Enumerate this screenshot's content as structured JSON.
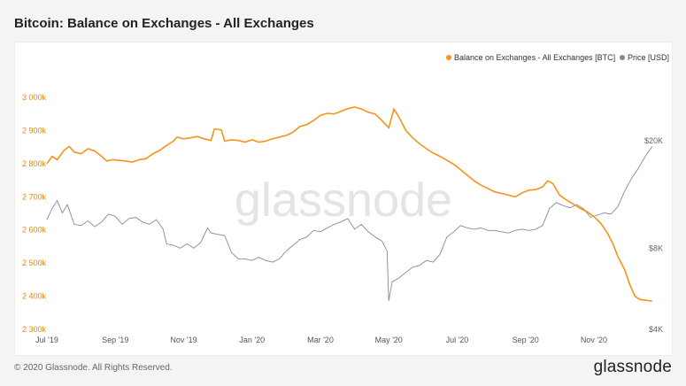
{
  "title": "Bitcoin: Balance on Exchanges - All Exchanges",
  "watermark": "glassnode",
  "footer": {
    "copyright": "© 2020 Glassnode. All Rights Reserved.",
    "logo": "glassnode"
  },
  "colors": {
    "balance": "#f7931a",
    "price": "#8a8a8a",
    "axis_left": "#e08a1c",
    "axis_right": "#666666"
  },
  "chart_data": {
    "type": "line",
    "title": "Bitcoin: Balance on Exchanges - All Exchanges",
    "legend_position": "top-right",
    "x_ticks": [
      "Jul '19",
      "Sep '19",
      "Nov '19",
      "Jan '20",
      "Mar '20",
      "May '20",
      "Jul '20",
      "Sep '20",
      "Nov '20"
    ],
    "x_range": [
      0,
      17.4
    ],
    "y_left": {
      "label": "Balance on Exchanges - All Exchanges [BTC]",
      "range": [
        2300000,
        3000000
      ],
      "ticks": [
        3000000,
        2900000,
        2800000,
        2700000,
        2600000,
        2500000,
        2400000,
        2300000
      ],
      "tick_labels": [
        "3 000k",
        "2 900k",
        "2 800k",
        "2 700k",
        "2 600k",
        "2 500k",
        "2 400k",
        "2 300k"
      ]
    },
    "y_right": {
      "label": "Price [USD]",
      "scale": "log",
      "range": [
        4000,
        20000
      ],
      "ticks": [
        20000,
        8000,
        4000
      ],
      "tick_labels": [
        "$20K",
        "$8K",
        "$4K"
      ]
    },
    "series": [
      {
        "name": "Balance on Exchanges - All Exchanges [BTC]",
        "axis": "left",
        "points": [
          [
            0,
            2800000
          ],
          [
            0.15,
            2822000
          ],
          [
            0.3,
            2812000
          ],
          [
            0.5,
            2840000
          ],
          [
            0.65,
            2852000
          ],
          [
            0.8,
            2835000
          ],
          [
            1,
            2830000
          ],
          [
            1.2,
            2845000
          ],
          [
            1.4,
            2838000
          ],
          [
            1.6,
            2822000
          ],
          [
            1.75,
            2808000
          ],
          [
            1.9,
            2812000
          ],
          [
            2.1,
            2810000
          ],
          [
            2.3,
            2808000
          ],
          [
            2.5,
            2805000
          ],
          [
            2.7,
            2812000
          ],
          [
            2.9,
            2815000
          ],
          [
            3.1,
            2830000
          ],
          [
            3.3,
            2840000
          ],
          [
            3.5,
            2855000
          ],
          [
            3.7,
            2868000
          ],
          [
            3.8,
            2880000
          ],
          [
            4.0,
            2875000
          ],
          [
            4.2,
            2878000
          ],
          [
            4.4,
            2882000
          ],
          [
            4.6,
            2875000
          ],
          [
            4.8,
            2870000
          ],
          [
            4.9,
            2905000
          ],
          [
            5.1,
            2902000
          ],
          [
            5.2,
            2868000
          ],
          [
            5.4,
            2872000
          ],
          [
            5.6,
            2870000
          ],
          [
            5.8,
            2865000
          ],
          [
            6.0,
            2872000
          ],
          [
            6.2,
            2865000
          ],
          [
            6.4,
            2868000
          ],
          [
            6.6,
            2875000
          ],
          [
            6.8,
            2880000
          ],
          [
            7.0,
            2885000
          ],
          [
            7.2,
            2895000
          ],
          [
            7.4,
            2912000
          ],
          [
            7.6,
            2918000
          ],
          [
            7.8,
            2930000
          ],
          [
            8.0,
            2946000
          ],
          [
            8.2,
            2952000
          ],
          [
            8.4,
            2950000
          ],
          [
            8.6,
            2958000
          ],
          [
            8.8,
            2966000
          ],
          [
            9.0,
            2971000
          ],
          [
            9.2,
            2965000
          ],
          [
            9.4,
            2955000
          ],
          [
            9.6,
            2950000
          ],
          [
            9.8,
            2930000
          ],
          [
            10.0,
            2908000
          ],
          [
            10.15,
            2965000
          ],
          [
            10.3,
            2940000
          ],
          [
            10.5,
            2900000
          ],
          [
            10.7,
            2878000
          ],
          [
            10.9,
            2860000
          ],
          [
            11.1,
            2845000
          ],
          [
            11.3,
            2832000
          ],
          [
            11.5,
            2822000
          ],
          [
            11.7,
            2810000
          ],
          [
            11.9,
            2798000
          ],
          [
            12.1,
            2782000
          ],
          [
            12.3,
            2765000
          ],
          [
            12.5,
            2748000
          ],
          [
            12.7,
            2735000
          ],
          [
            12.9,
            2725000
          ],
          [
            13.1,
            2715000
          ],
          [
            13.3,
            2710000
          ],
          [
            13.5,
            2705000
          ],
          [
            13.7,
            2700000
          ],
          [
            13.9,
            2712000
          ],
          [
            14.1,
            2720000
          ],
          [
            14.3,
            2722000
          ],
          [
            14.5,
            2730000
          ],
          [
            14.65,
            2748000
          ],
          [
            14.8,
            2740000
          ],
          [
            15.0,
            2705000
          ],
          [
            15.2,
            2690000
          ],
          [
            15.4,
            2678000
          ],
          [
            15.6,
            2665000
          ],
          [
            15.8,
            2655000
          ],
          [
            16.0,
            2640000
          ],
          [
            16.2,
            2620000
          ],
          [
            16.4,
            2590000
          ],
          [
            16.55,
            2560000
          ],
          [
            16.7,
            2520000
          ],
          [
            16.9,
            2480000
          ],
          [
            17.05,
            2435000
          ],
          [
            17.2,
            2400000
          ],
          [
            17.35,
            2390000
          ],
          [
            17.5,
            2388000
          ],
          [
            17.7,
            2385000
          ]
        ]
      },
      {
        "name": "Price [USD]",
        "axis": "right",
        "points": [
          [
            0,
            10200
          ],
          [
            0.15,
            11200
          ],
          [
            0.3,
            12000
          ],
          [
            0.45,
            10800
          ],
          [
            0.6,
            11600
          ],
          [
            0.8,
            9800
          ],
          [
            1,
            9700
          ],
          [
            1.2,
            10100
          ],
          [
            1.4,
            9600
          ],
          [
            1.6,
            10000
          ],
          [
            1.8,
            10700
          ],
          [
            2.0,
            10500
          ],
          [
            2.2,
            9800
          ],
          [
            2.4,
            10300
          ],
          [
            2.6,
            10400
          ],
          [
            2.8,
            10000
          ],
          [
            3.0,
            9800
          ],
          [
            3.2,
            10200
          ],
          [
            3.4,
            9400
          ],
          [
            3.5,
            8300
          ],
          [
            3.7,
            8200
          ],
          [
            3.9,
            8000
          ],
          [
            4.1,
            8300
          ],
          [
            4.3,
            8000
          ],
          [
            4.5,
            8400
          ],
          [
            4.7,
            9500
          ],
          [
            4.8,
            9100
          ],
          [
            5.0,
            9000
          ],
          [
            5.2,
            8900
          ],
          [
            5.4,
            7700
          ],
          [
            5.6,
            7300
          ],
          [
            5.8,
            7300
          ],
          [
            6.0,
            7200
          ],
          [
            6.2,
            7400
          ],
          [
            6.4,
            7200
          ],
          [
            6.6,
            7100
          ],
          [
            6.8,
            7300
          ],
          [
            7.0,
            7800
          ],
          [
            7.2,
            8200
          ],
          [
            7.4,
            8600
          ],
          [
            7.6,
            8800
          ],
          [
            7.8,
            9300
          ],
          [
            8.0,
            9200
          ],
          [
            8.2,
            9500
          ],
          [
            8.4,
            9800
          ],
          [
            8.6,
            10000
          ],
          [
            8.8,
            10300
          ],
          [
            9.0,
            9400
          ],
          [
            9.2,
            9800
          ],
          [
            9.4,
            9200
          ],
          [
            9.6,
            8800
          ],
          [
            9.8,
            8500
          ],
          [
            9.95,
            7800
          ],
          [
            10.0,
            5100
          ],
          [
            10.1,
            6000
          ],
          [
            10.3,
            6200
          ],
          [
            10.5,
            6500
          ],
          [
            10.7,
            6800
          ],
          [
            10.9,
            6900
          ],
          [
            11.1,
            7200
          ],
          [
            11.3,
            7100
          ],
          [
            11.5,
            7600
          ],
          [
            11.7,
            8800
          ],
          [
            11.9,
            9200
          ],
          [
            12.1,
            9700
          ],
          [
            12.3,
            9500
          ],
          [
            12.5,
            9400
          ],
          [
            12.7,
            9500
          ],
          [
            12.9,
            9300
          ],
          [
            13.1,
            9300
          ],
          [
            13.3,
            9200
          ],
          [
            13.5,
            9100
          ],
          [
            13.7,
            9300
          ],
          [
            13.9,
            9400
          ],
          [
            14.1,
            9300
          ],
          [
            14.3,
            9400
          ],
          [
            14.5,
            9700
          ],
          [
            14.7,
            11200
          ],
          [
            14.9,
            11800
          ],
          [
            15.1,
            11500
          ],
          [
            15.3,
            11300
          ],
          [
            15.5,
            11600
          ],
          [
            15.7,
            11200
          ],
          [
            15.9,
            10400
          ],
          [
            16.1,
            10600
          ],
          [
            16.3,
            10800
          ],
          [
            16.5,
            10700
          ],
          [
            16.7,
            11400
          ],
          [
            16.9,
            13000
          ],
          [
            17.1,
            14500
          ],
          [
            17.3,
            15800
          ],
          [
            17.5,
            17500
          ],
          [
            17.7,
            19000
          ]
        ]
      }
    ]
  }
}
